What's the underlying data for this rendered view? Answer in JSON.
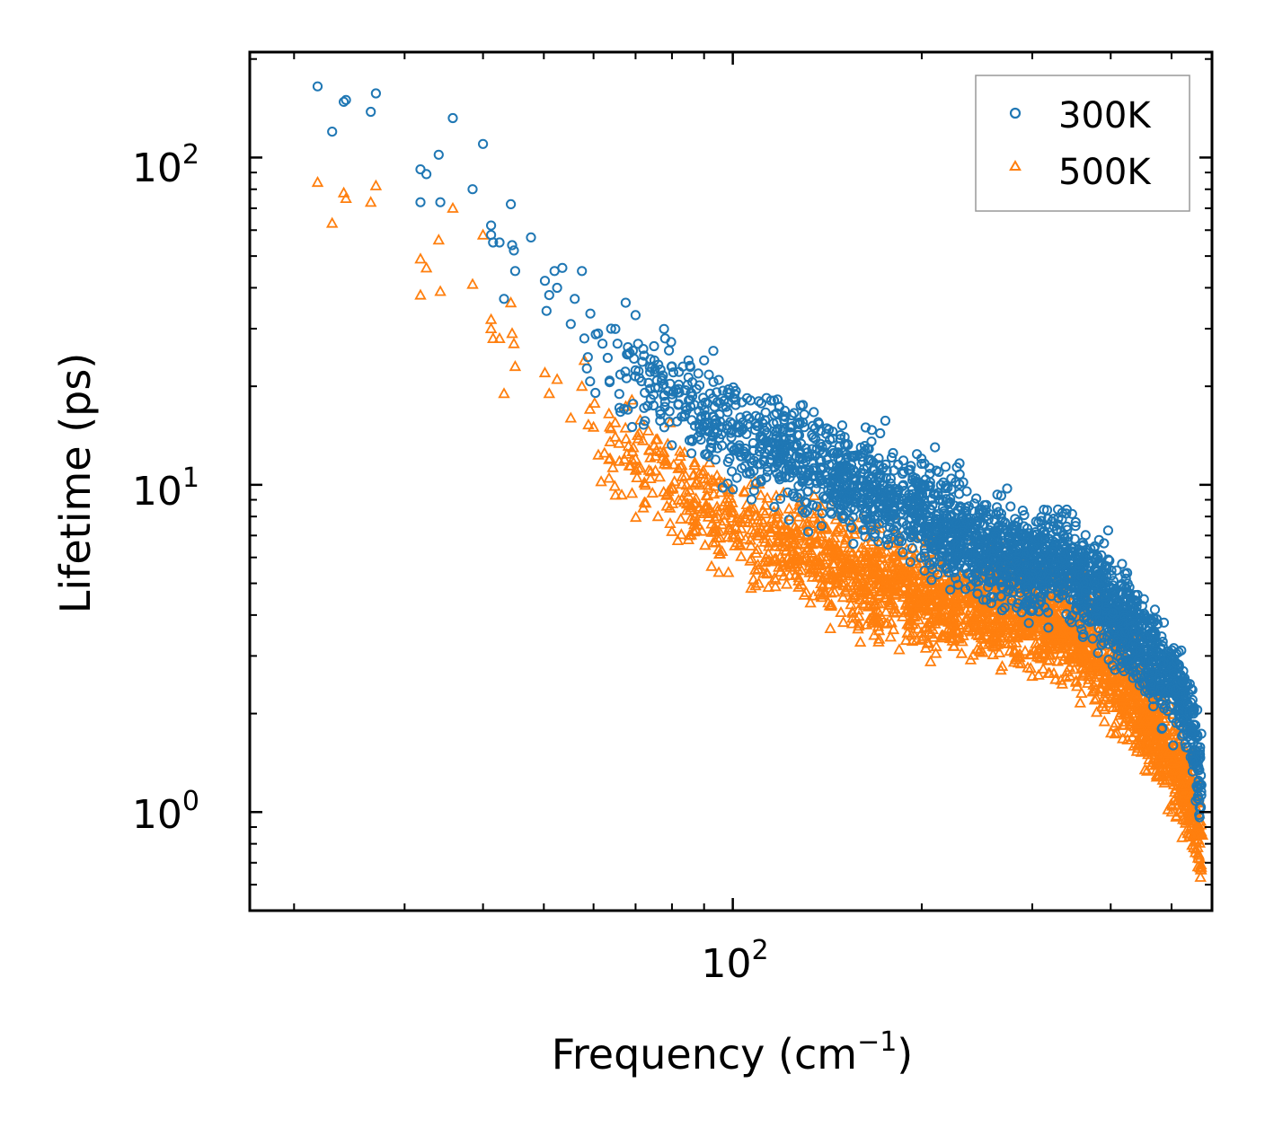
{
  "chart_data": {
    "type": "scatter",
    "title": "",
    "xlabel": "Frequency (cm",
    "xlabel_sup": "−1",
    "xlabel_close": ")",
    "ylabel": "Lifetime (ps)",
    "xscale": "log",
    "yscale": "log",
    "xlim": [
      17.0,
      580.0
    ],
    "ylim": [
      0.5,
      210.0
    ],
    "x_ticks": [
      {
        "base": "10",
        "exp": "2",
        "value": 100
      }
    ],
    "y_ticks": [
      {
        "base": "10",
        "exp": "0",
        "value": 1
      },
      {
        "base": "10",
        "exp": "1",
        "value": 10
      },
      {
        "base": "10",
        "exp": "2",
        "value": 100
      }
    ],
    "legend_position": "top-right",
    "series": [
      {
        "name": "300K",
        "color": "#1f77b4",
        "marker": "circle-open",
        "anchor_points": [
          [
            21.8,
            165
          ],
          [
            23.0,
            120
          ],
          [
            24.0,
            148
          ],
          [
            24.2,
            150
          ],
          [
            26.5,
            138
          ],
          [
            27.0,
            157
          ],
          [
            31.8,
            92
          ],
          [
            31.8,
            73
          ],
          [
            32.5,
            89
          ],
          [
            34.0,
            102
          ],
          [
            34.2,
            73
          ],
          [
            35.8,
            132
          ],
          [
            38.5,
            80
          ],
          [
            40.0,
            110
          ],
          [
            41.2,
            62
          ],
          [
            41.2,
            58
          ],
          [
            41.5,
            55
          ],
          [
            42.5,
            55
          ],
          [
            43.2,
            37
          ],
          [
            44.3,
            72
          ],
          [
            44.5,
            54
          ],
          [
            44.8,
            52
          ],
          [
            45.0,
            45
          ],
          [
            47.7,
            57
          ],
          [
            50.2,
            42
          ],
          [
            50.5,
            34
          ],
          [
            51.0,
            38
          ],
          [
            52.0,
            45
          ],
          [
            52.5,
            40
          ],
          [
            53.5,
            46
          ],
          [
            55.2,
            31
          ],
          [
            56.0,
            37
          ],
          [
            57.5,
            45
          ],
          [
            58.0,
            28
          ],
          [
            61.0,
            29
          ],
          [
            62.0,
            27
          ],
          [
            64.0,
            30
          ],
          [
            65.5,
            27
          ],
          [
            67.5,
            36
          ],
          [
            68.0,
            25
          ],
          [
            70.0,
            33
          ],
          [
            72.0,
            26
          ],
          [
            75.0,
            24
          ],
          [
            78.0,
            28
          ],
          [
            80.0,
            23
          ],
          [
            85.0,
            24
          ],
          [
            90.0,
            24
          ],
          [
            92.0,
            19
          ],
          [
            96.0,
            15
          ],
          [
            110.0,
            18
          ],
          [
            130.0,
            15
          ],
          [
            160.0,
            13
          ],
          [
            175.0,
            15.7
          ],
          [
            180.0,
            12.5
          ],
          [
            250.0,
            7.5
          ],
          [
            330.0,
            7.9
          ],
          [
            360.0,
            6.5
          ],
          [
            380.0,
            5.5
          ],
          [
            420.0,
            4.0
          ],
          [
            470.0,
            3.2
          ],
          [
            520.0,
            2.5
          ],
          [
            555.0,
            1.5
          ]
        ],
        "trend": [
          [
            58,
            25
          ],
          [
            70,
            22
          ],
          [
            80,
            19
          ],
          [
            90,
            16
          ],
          [
            100,
            14.5
          ],
          [
            120,
            12.5
          ],
          [
            140,
            11
          ],
          [
            160,
            10
          ],
          [
            180,
            9
          ],
          [
            200,
            8.2
          ],
          [
            220,
            7.4
          ],
          [
            250,
            6.6
          ],
          [
            280,
            6.0
          ],
          [
            300,
            5.8
          ],
          [
            320,
            5.8
          ],
          [
            340,
            5.7
          ],
          [
            360,
            5.2
          ],
          [
            380,
            4.7
          ],
          [
            400,
            4.2
          ],
          [
            430,
            3.6
          ],
          [
            460,
            3.1
          ],
          [
            490,
            2.6
          ],
          [
            520,
            2.2
          ],
          [
            540,
            1.8
          ],
          [
            555,
            1.2
          ]
        ]
      },
      {
        "name": "500K",
        "color": "#ff7f0e",
        "marker": "triangle-open",
        "anchor_points": [
          [
            21.8,
            84
          ],
          [
            23.0,
            63
          ],
          [
            24.0,
            78
          ],
          [
            24.2,
            75
          ],
          [
            26.5,
            73
          ],
          [
            27.0,
            82
          ],
          [
            31.8,
            49
          ],
          [
            31.8,
            38
          ],
          [
            32.5,
            46
          ],
          [
            34.0,
            56
          ],
          [
            34.2,
            39
          ],
          [
            35.8,
            70
          ],
          [
            38.5,
            41
          ],
          [
            40.0,
            58
          ],
          [
            41.2,
            32
          ],
          [
            41.2,
            30
          ],
          [
            41.5,
            28
          ],
          [
            42.5,
            28
          ],
          [
            43.2,
            19
          ],
          [
            44.3,
            36
          ],
          [
            44.5,
            29
          ],
          [
            44.8,
            27
          ],
          [
            45.0,
            23
          ],
          [
            50.2,
            22
          ],
          [
            51.0,
            19
          ],
          [
            52.5,
            21
          ],
          [
            55.2,
            16
          ],
          [
            57.5,
            20
          ],
          [
            58.0,
            24
          ],
          [
            60.0,
            15
          ],
          [
            65.0,
            14
          ],
          [
            70.0,
            12
          ],
          [
            72.0,
            8.5
          ],
          [
            76.0,
            8.0
          ],
          [
            80.0,
            7.2
          ],
          [
            85.0,
            6.8
          ],
          [
            95.0,
            5.4
          ],
          [
            110.0,
            5.0
          ],
          [
            130.0,
            4.6
          ],
          [
            150.0,
            3.8
          ],
          [
            170.0,
            3.8
          ],
          [
            220.0,
            3.6
          ],
          [
            260.0,
            3.3
          ],
          [
            300.0,
            2.6
          ],
          [
            330.0,
            3.9
          ],
          [
            350.0,
            3.4
          ],
          [
            380.0,
            2.5
          ],
          [
            420.0,
            2.0
          ],
          [
            470.0,
            1.6
          ],
          [
            520.0,
            1.2
          ],
          [
            555.0,
            0.72
          ],
          [
            560.0,
            0.85
          ]
        ],
        "trend": [
          [
            58,
            16
          ],
          [
            70,
            12
          ],
          [
            80,
            10
          ],
          [
            90,
            8.6
          ],
          [
            100,
            7.6
          ],
          [
            120,
            6.5
          ],
          [
            140,
            5.8
          ],
          [
            160,
            5.2
          ],
          [
            180,
            4.9
          ],
          [
            200,
            4.6
          ],
          [
            220,
            4.4
          ],
          [
            250,
            4.2
          ],
          [
            280,
            4.0
          ],
          [
            300,
            3.9
          ],
          [
            320,
            3.8
          ],
          [
            340,
            3.6
          ],
          [
            360,
            3.3
          ],
          [
            380,
            3.0
          ],
          [
            400,
            2.7
          ],
          [
            430,
            2.3
          ],
          [
            460,
            1.9
          ],
          [
            490,
            1.6
          ],
          [
            520,
            1.3
          ],
          [
            540,
            1.05
          ],
          [
            555,
            0.8
          ]
        ]
      }
    ]
  }
}
